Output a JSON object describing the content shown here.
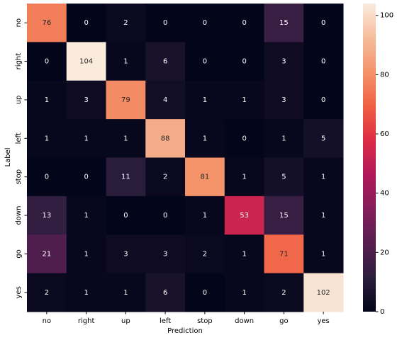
{
  "chart_data": {
    "type": "heatmap",
    "xlabel": "Prediction",
    "ylabel": "Label",
    "categories": [
      "no",
      "right",
      "up",
      "left",
      "stop",
      "down",
      "go",
      "yes"
    ],
    "rows": [
      "no",
      "right",
      "up",
      "left",
      "stop",
      "down",
      "go",
      "yes"
    ],
    "values": [
      [
        76,
        0,
        2,
        0,
        0,
        0,
        15,
        0
      ],
      [
        0,
        104,
        1,
        6,
        0,
        0,
        3,
        0
      ],
      [
        1,
        3,
        79,
        4,
        1,
        1,
        3,
        0
      ],
      [
        1,
        1,
        1,
        88,
        1,
        0,
        1,
        5
      ],
      [
        0,
        0,
        11,
        2,
        81,
        1,
        5,
        1
      ],
      [
        13,
        1,
        0,
        0,
        1,
        53,
        15,
        1
      ],
      [
        21,
        1,
        3,
        3,
        2,
        1,
        71,
        1
      ],
      [
        2,
        1,
        1,
        6,
        0,
        1,
        2,
        102
      ]
    ],
    "colorscale": [
      "#03051a",
      "#2c1e3e",
      "#571e4f",
      "#841e5a",
      "#b1185a",
      "#dd2c45",
      "#f06043",
      "#f4936a",
      "#f6bc9c",
      "#faebdd"
    ],
    "clim": [
      0,
      104
    ],
    "cticks": [
      0,
      20,
      40,
      60,
      80,
      100
    ]
  }
}
